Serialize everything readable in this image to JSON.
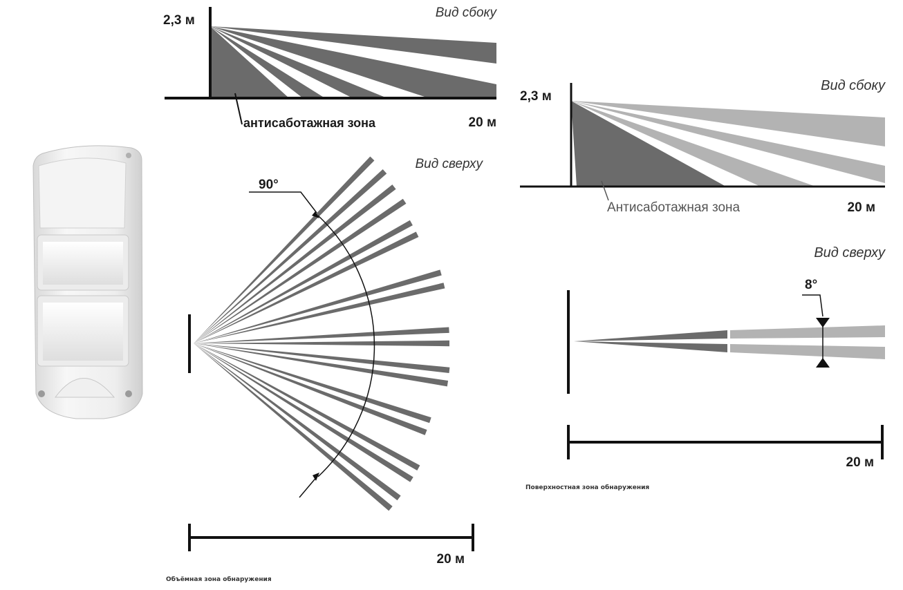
{
  "colors": {
    "beam_dark": "#6b6b6b",
    "beam_light": "#b3b3b3",
    "axis": "#111111",
    "device_body": "#f2f2f2"
  },
  "volumetric": {
    "height_label": "2,3 м",
    "side_view_label": "Вид сбоку",
    "anti_sabotage_label": "антисаботажная зона",
    "distance_side_label": "20 м",
    "top_view_label": "Вид сверху",
    "angle_label": "90°",
    "distance_top_label": "20 м",
    "caption": "Объёмная зона обнаружения"
  },
  "surface": {
    "height_label": "2,3 м",
    "side_view_label": "Вид сбоку",
    "anti_sabotage_label": "Антисаботажная зона",
    "distance_side_label": "20 м",
    "top_view_label": "Вид сверху",
    "angle_label": "8°",
    "distance_top_label": "20 м",
    "caption": "Поверхностная зона обнаружения"
  }
}
